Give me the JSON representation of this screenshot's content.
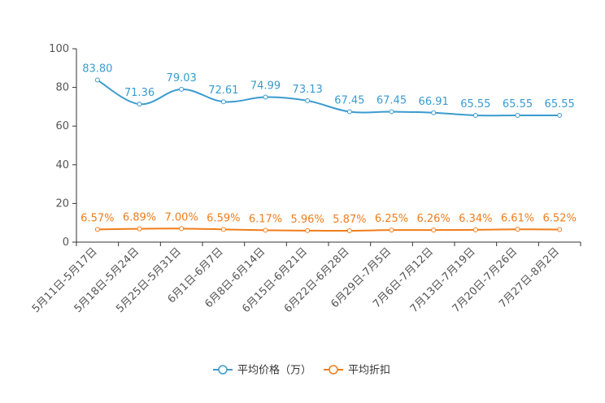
{
  "chart_data": {
    "type": "line",
    "title": "",
    "xlabel": "",
    "ylabel": "",
    "ylim": [
      0,
      100
    ],
    "yticks": [
      0,
      20,
      40,
      60,
      80,
      100
    ],
    "grid": false,
    "legend_position": "bottom-center",
    "categories": [
      "5月11日-5月17日",
      "5月18日-5月24日",
      "5月25日-5月31日",
      "6月1日-6月7日",
      "6月8日-6月14日",
      "6月15日-6月21日",
      "6月22日-6月28日",
      "6月29日-7月5日",
      "7月6日-7月12日",
      "7月13日-7月19日",
      "7月20日-7月26日",
      "7月27日-8月2日"
    ],
    "series": [
      {
        "name": "平均价格（万）",
        "color": "#3a9bcf",
        "values": [
          83.8,
          71.36,
          79.03,
          72.61,
          74.99,
          73.13,
          67.45,
          67.45,
          66.91,
          65.55,
          65.55,
          65.55
        ],
        "labels": [
          "83.80",
          "71.36",
          "79.03",
          "72.61",
          "74.99",
          "73.13",
          "67.45",
          "67.45",
          "66.91",
          "65.55",
          "65.55",
          "65.55"
        ]
      },
      {
        "name": "平均折扣",
        "color": "#f07d1a",
        "values": [
          6.57,
          6.89,
          7.0,
          6.59,
          6.17,
          5.96,
          5.87,
          6.25,
          6.26,
          6.34,
          6.61,
          6.52
        ],
        "labels": [
          "6.57%",
          "6.89%",
          "7.00%",
          "6.59%",
          "6.17%",
          "5.96%",
          "5.87%",
          "6.25%",
          "6.26%",
          "6.34%",
          "6.61%",
          "6.52%"
        ]
      }
    ]
  }
}
